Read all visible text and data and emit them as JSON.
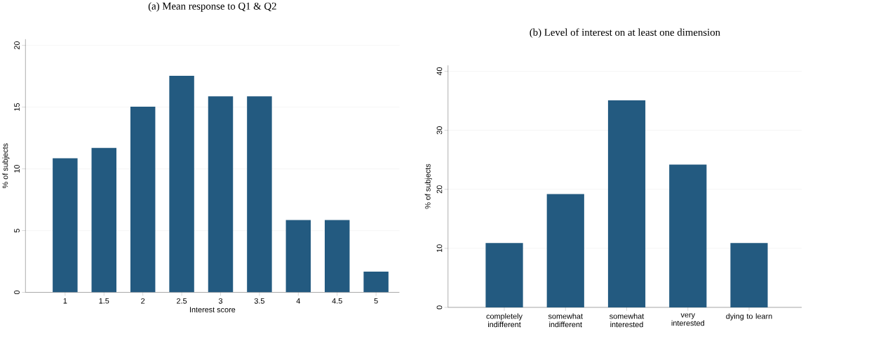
{
  "chart_data": [
    {
      "type": "bar",
      "title": "(a) Mean response to Q1 & Q2",
      "xlabel": "Interest score",
      "ylabel": "% of subjects",
      "categories": [
        "1",
        "1.5",
        "2",
        "2.5",
        "3",
        "3.5",
        "4",
        "4.5",
        "5"
      ],
      "values": [
        10.86,
        11.7,
        15.04,
        17.54,
        15.87,
        15.87,
        5.85,
        5.85,
        1.68
      ],
      "color": "#235a80",
      "ylim": [
        0,
        20.5
      ],
      "yticks": [
        0,
        5,
        10,
        15,
        20
      ],
      "grid": "y"
    },
    {
      "type": "bar",
      "title": "(b) Level of interest on at least one dimension",
      "ylabel": "% of subjects",
      "categories": [
        "completely indifferent",
        "somewhat indifferent",
        "somewhat interested",
        "very interested",
        "dying to learn"
      ],
      "values": [
        10.9,
        19.2,
        35.1,
        24.2,
        10.9
      ],
      "color": "#235a80",
      "ylim": [
        0,
        41
      ],
      "yticks": [
        0,
        10,
        20,
        30,
        40
      ],
      "grid": "y"
    }
  ]
}
